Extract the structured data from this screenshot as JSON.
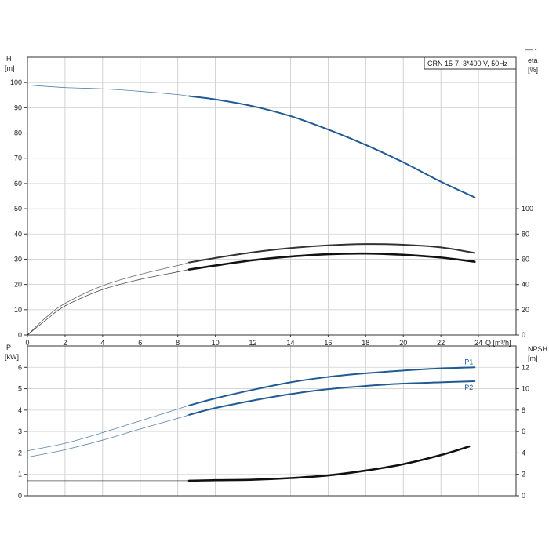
{
  "chart_data": [
    {
      "type": "line",
      "panel": "upper",
      "title": "CRN 15-7, 3*400 V, 50Hz",
      "xlabel": "Q [m³/h]",
      "ylabel_left": [
        "H",
        "[m]"
      ],
      "ylabel_right": [
        "eta",
        "[%]"
      ],
      "xlim": [
        0,
        26
      ],
      "ylim_left": [
        0,
        110
      ],
      "ylim_right": [
        0,
        220
      ],
      "grid": true,
      "x_ticks": [
        0,
        2,
        4,
        6,
        8,
        10,
        12,
        14,
        16,
        18,
        20,
        22,
        24
      ],
      "y_ticks_left": [
        0,
        10,
        20,
        30,
        40,
        50,
        60,
        70,
        80,
        90,
        100
      ],
      "y_ticks_right": [
        0,
        20,
        40,
        60,
        80,
        100
      ],
      "series": [
        {
          "axis": "left",
          "color": "#1f5a94",
          "duty_from": 8.6,
          "x": [
            0,
            2,
            4,
            6,
            8,
            8.6,
            10,
            12,
            14,
            16,
            18,
            20,
            22,
            23.8
          ],
          "y": [
            99,
            98,
            97.5,
            96.5,
            95.2,
            94.6,
            93.3,
            90.6,
            86.7,
            81.4,
            75.3,
            68.4,
            60.7,
            54.5
          ]
        },
        {
          "axis": "right",
          "color": "#333333",
          "duty_from": 8.6,
          "x": [
            0,
            1,
            2,
            4,
            6,
            8,
            8.6,
            10,
            12,
            14,
            16,
            18,
            20,
            22,
            23.8
          ],
          "y": [
            0,
            14,
            25,
            39,
            48,
            55,
            57.4,
            61,
            65.5,
            68.8,
            71,
            72,
            71.5,
            69.4,
            65
          ]
        },
        {
          "axis": "right",
          "color": "#111111",
          "duty_from": 8.6,
          "x": [
            0,
            1,
            2,
            4,
            6,
            8,
            8.6,
            10,
            12,
            14,
            16,
            18,
            20,
            22,
            23.8
          ],
          "y": [
            0,
            12,
            23,
            36,
            44,
            50,
            51.8,
            55,
            59.2,
            62.1,
            64,
            64.5,
            63.5,
            61.3,
            58
          ]
        }
      ]
    },
    {
      "type": "line",
      "panel": "lower",
      "ylabel_left": [
        "P",
        "[kW]"
      ],
      "ylabel_right": [
        "NPSH",
        "[m]"
      ],
      "xlim": [
        0,
        26
      ],
      "ylim_left": [
        0,
        7
      ],
      "ylim_right": [
        0,
        14
      ],
      "grid": true,
      "y_ticks_left": [
        0,
        1,
        2,
        3,
        4,
        5,
        6
      ],
      "y_ticks_right": [
        0,
        2,
        4,
        6,
        8,
        10,
        12
      ],
      "series": [
        {
          "name": "P1",
          "axis": "left",
          "color": "#1f5a94",
          "duty_from": 8.6,
          "x": [
            0,
            2,
            4,
            6,
            8,
            8.6,
            10,
            12,
            14,
            16,
            18,
            20,
            22,
            23.8
          ],
          "y": [
            2.1,
            2.45,
            2.95,
            3.5,
            4.05,
            4.22,
            4.55,
            4.95,
            5.3,
            5.55,
            5.72,
            5.85,
            5.95,
            6.0
          ]
        },
        {
          "name": "P2",
          "axis": "left",
          "color": "#1f5a94",
          "duty_from": 8.6,
          "x": [
            0,
            2,
            4,
            6,
            8,
            8.6,
            10,
            12,
            14,
            16,
            18,
            20,
            22,
            23.8
          ],
          "y": [
            1.8,
            2.15,
            2.6,
            3.12,
            3.62,
            3.78,
            4.1,
            4.45,
            4.75,
            4.98,
            5.13,
            5.24,
            5.3,
            5.35
          ]
        },
        {
          "axis": "right",
          "color": "#111111",
          "duty_from": 8.6,
          "x": [
            0,
            2,
            4,
            6,
            8,
            8.6,
            10,
            12,
            14,
            16,
            18,
            20,
            22,
            23.5
          ],
          "y": [
            1.4,
            1.4,
            1.4,
            1.4,
            1.4,
            1.4,
            1.45,
            1.5,
            1.65,
            1.9,
            2.35,
            2.95,
            3.8,
            4.6
          ]
        }
      ]
    }
  ],
  "corner_mark": "—  -"
}
